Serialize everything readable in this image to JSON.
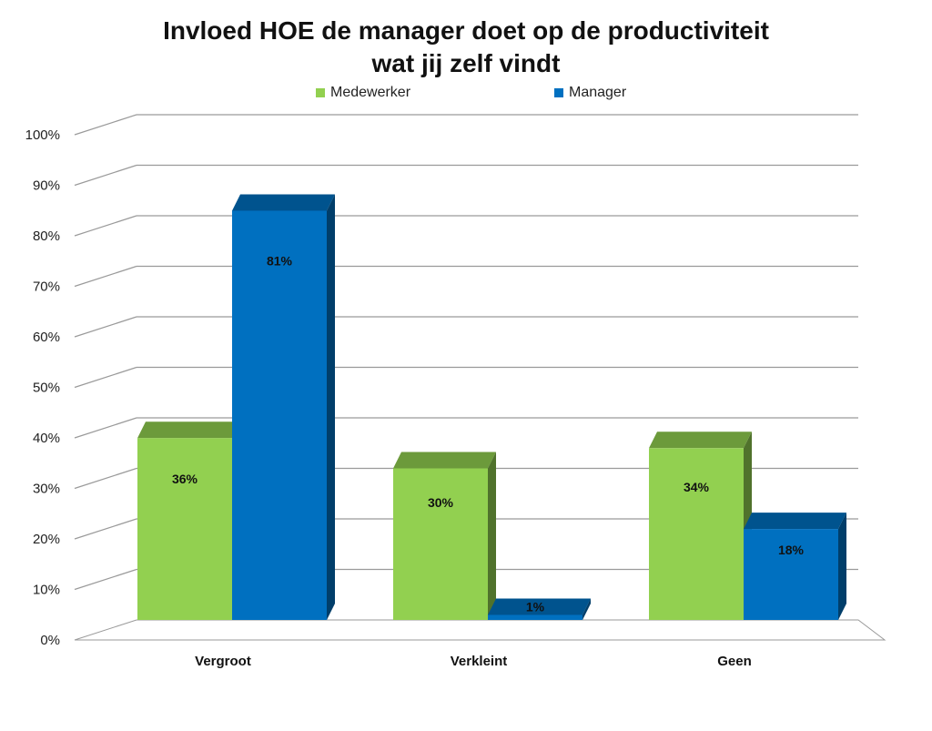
{
  "chart_data": {
    "type": "bar",
    "title": "Invloed HOE de manager doet op de productiviteit\nwat jij zelf vindt",
    "categories": [
      "Vergroot",
      "Verkleint",
      "Geen"
    ],
    "series": [
      {
        "name": "Medewerker",
        "values": [
          36,
          30,
          34
        ],
        "labels": [
          "36%",
          "30%",
          "34%"
        ],
        "color": "#92d050"
      },
      {
        "name": "Manager",
        "values": [
          81,
          1,
          18
        ],
        "labels": [
          "81%",
          "1%",
          "18%"
        ],
        "color": "#0070c0"
      }
    ],
    "ylim": [
      0,
      100
    ],
    "yticks": [
      "0%",
      "10%",
      "20%",
      "30%",
      "40%",
      "50%",
      "60%",
      "70%",
      "80%",
      "90%",
      "100%"
    ],
    "grid": true,
    "legend_position": "top",
    "style": "3d-clustered-column"
  }
}
